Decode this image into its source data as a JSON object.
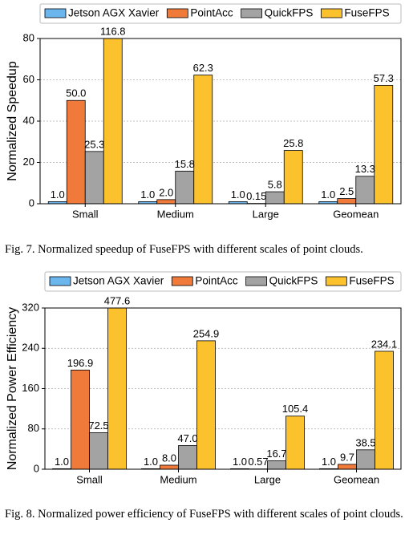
{
  "chart_data": [
    {
      "type": "bar",
      "caption": "Fig. 7.  Normalized speedup of FuseFPS with different scales of point clouds.",
      "ylabel": "Normalized Speedup",
      "categories": [
        "Small",
        "Medium",
        "Large",
        "Geomean"
      ],
      "ylim": [
        0,
        80
      ],
      "yticks": [
        0,
        20,
        40,
        60,
        80
      ],
      "grid": true,
      "series": [
        {
          "name": "Jetson AGX Xavier",
          "color": "#6cb6ee",
          "values": [
            1.0,
            1.0,
            1.0,
            1.0
          ],
          "value_labels": [
            "1.0",
            "1.0",
            "1.0",
            "1.0"
          ]
        },
        {
          "name": "PointAcc",
          "color": "#f07a3a",
          "values": [
            50.0,
            2.0,
            0.15,
            2.5
          ],
          "value_labels": [
            "50.0",
            "2.0",
            "0.15",
            "2.5"
          ]
        },
        {
          "name": "QuickFPS",
          "color": "#a3a3a3",
          "values": [
            25.3,
            15.8,
            5.8,
            13.3
          ],
          "value_labels": [
            "25.3",
            "15.8",
            "5.8",
            "13.3"
          ]
        },
        {
          "name": "FuseFPS",
          "color": "#fcc22e",
          "values": [
            116.8,
            62.3,
            25.8,
            57.3
          ],
          "value_labels": [
            "116.8",
            "62.3",
            "25.8",
            "57.3"
          ]
        }
      ]
    },
    {
      "type": "bar",
      "caption": "Fig. 8.  Normalized power efficiency of FuseFPS with different scales of point clouds.",
      "ylabel": "Normalized Power Efficiency",
      "categories": [
        "Small",
        "Medium",
        "Large",
        "Geomean"
      ],
      "ylim": [
        0,
        320
      ],
      "yticks": [
        0,
        80,
        160,
        240,
        320
      ],
      "grid": true,
      "series": [
        {
          "name": "Jetson AGX Xavier",
          "color": "#6cb6ee",
          "values": [
            1.0,
            1.0,
            1.0,
            1.0
          ],
          "value_labels": [
            "1.0",
            "1.0",
            "1.0",
            "1.0"
          ]
        },
        {
          "name": "PointAcc",
          "color": "#f07a3a",
          "values": [
            196.9,
            8.0,
            0.57,
            9.7
          ],
          "value_labels": [
            "196.9",
            "8.0",
            "0.57",
            "9.7"
          ]
        },
        {
          "name": "QuickFPS",
          "color": "#a3a3a3",
          "values": [
            72.5,
            47.0,
            16.7,
            38.5
          ],
          "value_labels": [
            "72.5",
            "47.0",
            "16.7",
            "38.5"
          ]
        },
        {
          "name": "FuseFPS",
          "color": "#fcc22e",
          "values": [
            477.6,
            254.9,
            105.4,
            234.1
          ],
          "value_labels": [
            "477.6",
            "254.9",
            "105.4",
            "234.1"
          ]
        }
      ]
    }
  ]
}
